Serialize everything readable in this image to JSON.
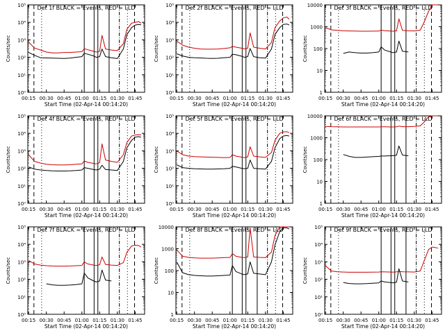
{
  "figure": {
    "title_template": "Det {n} BLACK = Events, RED = LLD",
    "xlabel": "Start Time (02-Apr-14 00:14:20)",
    "ylabel": "Counts/sec",
    "x_ticks": [
      "00:15",
      "00:30",
      "00:45",
      "01:00",
      "01:15",
      "01:30",
      "01:45"
    ],
    "colors": {
      "events": "#000000",
      "lld": "#cc0000",
      "axes": "#000000"
    }
  },
  "chart_data": [
    {
      "type": "line",
      "panel": "Det 1f",
      "title": "Det 1f BLACK = Events, RED = LLD",
      "xlabel": "Start Time (02-Apr-14 00:14:20)",
      "ylabel": "Counts/sec",
      "xlim": [
        "00:14:20",
        "01:53:00"
      ],
      "ylim": [
        1,
        100000
      ],
      "yscale": "log",
      "y_ticks": [
        "10⁰",
        "10¹",
        "10²",
        "10³",
        "10⁴",
        "10⁵"
      ],
      "x": [
        "00:15",
        "00:20",
        "00:25",
        "00:30",
        "00:35",
        "00:40",
        "00:45",
        "00:50",
        "00:55",
        "01:00",
        "01:02",
        "01:05",
        "01:10",
        "01:12",
        "01:15",
        "01:17",
        "01:20",
        "01:25",
        "01:30",
        "01:35",
        "01:38",
        "01:42",
        "01:45",
        "01:48",
        "01:50"
      ],
      "series": [
        {
          "name": "BLACK = Events",
          "values": [
            190,
            130,
            95,
            92,
            90,
            88,
            86,
            90,
            100,
            110,
            170,
            150,
            120,
            100,
            110,
            300,
            110,
            95,
            85,
            300,
            2000,
            5000,
            7000,
            7500,
            7200
          ]
        },
        {
          "name": "RED = LLD",
          "values": [
            750,
            340,
            260,
            200,
            180,
            180,
            190,
            190,
            200,
            210,
            310,
            270,
            220,
            200,
            220,
            1800,
            300,
            260,
            240,
            600,
            4000,
            9000,
            10000,
            11000,
            9000
          ]
        }
      ]
    },
    {
      "type": "line",
      "panel": "Det 2f",
      "title": "Det 2f BLACK = Events, RED = LLD",
      "xlabel": "Start Time (02-Apr-14 00:14:20)",
      "ylabel": "Counts/sec",
      "xlim": [
        "00:14:20",
        "01:53:00"
      ],
      "ylim": [
        1,
        100000
      ],
      "yscale": "log",
      "y_ticks": [
        "10⁰",
        "10¹",
        "10²",
        "10³",
        "10⁴",
        "10⁵"
      ],
      "x": [
        "00:15",
        "00:20",
        "00:25",
        "00:30",
        "00:35",
        "00:40",
        "00:45",
        "00:50",
        "00:55",
        "01:00",
        "01:02",
        "01:05",
        "01:10",
        "01:12",
        "01:15",
        "01:17",
        "01:20",
        "01:25",
        "01:30",
        "01:35",
        "01:38",
        "01:42",
        "01:45",
        "01:48",
        "01:50"
      ],
      "series": [
        {
          "name": "BLACK = Events",
          "values": [
            160,
            120,
            100,
            95,
            92,
            88,
            86,
            88,
            95,
            100,
            150,
            140,
            115,
            100,
            110,
            320,
            110,
            95,
            90,
            300,
            2000,
            5000,
            7500,
            8000,
            7000
          ]
        },
        {
          "name": "RED = LLD",
          "values": [
            850,
            500,
            380,
            330,
            300,
            290,
            290,
            300,
            320,
            350,
            420,
            380,
            330,
            300,
            330,
            2500,
            380,
            330,
            300,
            700,
            5000,
            12000,
            18000,
            20000,
            15000
          ]
        }
      ]
    },
    {
      "type": "line",
      "panel": "Det 3f",
      "title": "Det 3f BLACK = Events, RED = LLD",
      "xlabel": "Start Time (02-Apr-14 00:14:20)",
      "ylabel": "Counts/sec",
      "xlim": [
        "00:14:20",
        "01:53:00"
      ],
      "ylim": [
        1,
        10000
      ],
      "yscale": "log",
      "y_ticks": [
        "1",
        "10",
        "100",
        "1000",
        "10000"
      ],
      "x": [
        "00:15",
        "00:20",
        "00:25",
        "00:30",
        "00:35",
        "00:40",
        "00:45",
        "00:50",
        "00:55",
        "01:00",
        "01:02",
        "01:05",
        "01:10",
        "01:12",
        "01:15",
        "01:17",
        "01:20",
        "01:25",
        "01:30",
        "01:35",
        "01:38",
        "01:42",
        "01:45",
        "01:48",
        "01:50"
      ],
      "series": [
        {
          "name": "BLACK = Events",
          "values": [
            null,
            null,
            null,
            60,
            70,
            65,
            62,
            62,
            65,
            70,
            120,
            85,
            70,
            65,
            70,
            220,
            75,
            70,
            null,
            null,
            null,
            null,
            null,
            null,
            null
          ]
        },
        {
          "name": "RED = LLD",
          "values": [
            900,
            720,
            680,
            650,
            640,
            630,
            620,
            620,
            625,
            630,
            700,
            660,
            630,
            620,
            650,
            2300,
            680,
            650,
            640,
            700,
            1500,
            5000,
            10000,
            10000,
            10000
          ]
        }
      ]
    },
    {
      "type": "line",
      "panel": "Det 4f",
      "title": "Det 4f BLACK = Events, RED = LLD",
      "xlabel": "Start Time (02-Apr-14 00:14:20)",
      "ylabel": "Counts/sec",
      "xlim": [
        "00:14:20",
        "01:53:00"
      ],
      "ylim": [
        1,
        100000
      ],
      "yscale": "log",
      "y_ticks": [
        "10⁰",
        "10¹",
        "10²",
        "10³",
        "10⁴",
        "10⁵"
      ],
      "x": [
        "00:15",
        "00:20",
        "00:25",
        "00:30",
        "00:35",
        "00:40",
        "00:45",
        "00:50",
        "00:55",
        "01:00",
        "01:02",
        "01:05",
        "01:10",
        "01:12",
        "01:15",
        "01:17",
        "01:20",
        "01:25",
        "01:30",
        "01:35",
        "01:38",
        "01:42",
        "01:45",
        "01:48",
        "01:50"
      ],
      "series": [
        {
          "name": "BLACK = Events",
          "values": [
            120,
            90,
            80,
            75,
            72,
            70,
            70,
            72,
            75,
            80,
            110,
            100,
            85,
            80,
            90,
            150,
            85,
            80,
            75,
            250,
            1500,
            4000,
            6000,
            6500,
            6000
          ]
        },
        {
          "name": "RED = LLD",
          "values": [
            600,
            250,
            200,
            170,
            160,
            155,
            155,
            160,
            170,
            180,
            260,
            220,
            190,
            180,
            210,
            2500,
            300,
            250,
            220,
            600,
            3000,
            7000,
            8000,
            8500,
            8000
          ]
        }
      ]
    },
    {
      "type": "line",
      "panel": "Det 5f",
      "title": "Det 5f BLACK = Events, RED = LLD",
      "xlabel": "Start Time (02-Apr-14 00:14:20)",
      "ylabel": "Counts/sec",
      "xlim": [
        "00:14:20",
        "01:53:00"
      ],
      "ylim": [
        1,
        100000
      ],
      "yscale": "log",
      "y_ticks": [
        "10⁰",
        "10¹",
        "10²",
        "10³",
        "10⁴",
        "10⁵"
      ],
      "x": [
        "00:15",
        "00:20",
        "00:25",
        "00:30",
        "00:35",
        "00:40",
        "00:45",
        "00:50",
        "00:55",
        "01:00",
        "01:02",
        "01:05",
        "01:10",
        "01:12",
        "01:15",
        "01:17",
        "01:20",
        "01:25",
        "01:30",
        "01:35",
        "01:38",
        "01:42",
        "01:45",
        "01:48",
        "01:50"
      ],
      "series": [
        {
          "name": "BLACK = Events",
          "values": [
            160,
            110,
            100,
            95,
            92,
            90,
            90,
            92,
            95,
            100,
            130,
            120,
            100,
            95,
            100,
            300,
            100,
            95,
            90,
            250,
            1500,
            5000,
            7000,
            7500,
            7000
          ]
        },
        {
          "name": "RED = LLD",
          "values": [
            1000,
            600,
            500,
            470,
            450,
            440,
            430,
            420,
            410,
            420,
            600,
            500,
            430,
            410,
            450,
            1700,
            500,
            450,
            420,
            800,
            4000,
            10000,
            12000,
            12500,
            11000
          ]
        }
      ]
    },
    {
      "type": "line",
      "panel": "Det 6f",
      "title": "Det 6f BLACK = Events, RED = LLD",
      "xlabel": "Start Time (02-Apr-14 00:14:20)",
      "ylabel": "Counts/sec",
      "xlim": [
        "00:14:20",
        "01:53:00"
      ],
      "ylim": [
        1,
        10000
      ],
      "yscale": "log",
      "y_ticks": [
        "1",
        "10",
        "100",
        "1000",
        "10000"
      ],
      "x": [
        "00:15",
        "00:20",
        "00:25",
        "00:30",
        "00:35",
        "00:40",
        "00:45",
        "00:50",
        "00:55",
        "01:00",
        "01:02",
        "01:05",
        "01:10",
        "01:12",
        "01:15",
        "01:17",
        "01:20",
        "01:25",
        "01:30",
        "01:35",
        "01:38",
        "01:42",
        "01:45",
        "01:48",
        "01:50"
      ],
      "series": [
        {
          "name": "BLACK = Events",
          "values": [
            null,
            null,
            null,
            170,
            140,
            125,
            125,
            130,
            135,
            140,
            145,
            145,
            150,
            150,
            160,
            420,
            160,
            150,
            null,
            null,
            null,
            null,
            null,
            null,
            null
          ]
        },
        {
          "name": "RED = LLD",
          "values": [
            3300,
            3200,
            3150,
            3100,
            3100,
            3100,
            3100,
            3100,
            3100,
            3100,
            3150,
            3150,
            3100,
            3100,
            3150,
            3400,
            3200,
            3200,
            3300,
            3500,
            5000,
            9000,
            10000,
            10000,
            10000
          ]
        }
      ]
    },
    {
      "type": "line",
      "panel": "Det 7f",
      "title": "Det 7f BLACK = Events, RED = LLD",
      "xlabel": "Start Time (02-Apr-14 00:14:20)",
      "ylabel": "Counts/sec",
      "xlim": [
        "00:14:20",
        "01:53:00"
      ],
      "ylim": [
        1,
        100000
      ],
      "yscale": "log",
      "y_ticks": [
        "10⁰",
        "10¹",
        "10²",
        "10³",
        "10⁴",
        "10⁵"
      ],
      "x": [
        "00:15",
        "00:20",
        "00:25",
        "00:30",
        "00:35",
        "00:40",
        "00:45",
        "00:50",
        "00:55",
        "01:00",
        "01:02",
        "01:05",
        "01:10",
        "01:12",
        "01:15",
        "01:17",
        "01:20",
        "01:25",
        "01:30",
        "01:35",
        "01:38",
        "01:42",
        "01:45",
        "01:48",
        "01:50"
      ],
      "series": [
        {
          "name": "BLACK = Events",
          "values": [
            null,
            null,
            null,
            55,
            48,
            45,
            45,
            47,
            50,
            55,
            230,
            120,
            80,
            70,
            80,
            340,
            90,
            80,
            null,
            null,
            null,
            null,
            null,
            null,
            null
          ]
        },
        {
          "name": "RED = LLD",
          "values": [
            1200,
            750,
            650,
            600,
            580,
            570,
            570,
            580,
            600,
            620,
            1000,
            750,
            650,
            620,
            680,
            1900,
            700,
            650,
            620,
            900,
            3500,
            8000,
            9000,
            8500,
            7000
          ]
        }
      ]
    },
    {
      "type": "line",
      "panel": "Det 8f",
      "title": "Det 8f BLACK = Events, RED = LLD",
      "xlabel": "Start Time (02-Apr-14 00:14:20)",
      "ylabel": "Counts/sec",
      "xlim": [
        "00:14:20",
        "01:53:00"
      ],
      "ylim": [
        1,
        10000
      ],
      "yscale": "log",
      "y_ticks": [
        "1",
        "10",
        "100",
        "1000",
        "10000"
      ],
      "x": [
        "00:15",
        "00:20",
        "00:25",
        "00:30",
        "00:35",
        "00:40",
        "00:45",
        "00:50",
        "00:55",
        "01:00",
        "01:02",
        "01:05",
        "01:10",
        "01:12",
        "01:15",
        "01:17",
        "01:20",
        "01:25",
        "01:30",
        "01:35",
        "01:38",
        "01:42",
        "01:45",
        "01:48",
        "01:50"
      ],
      "series": [
        {
          "name": "BLACK = Events",
          "values": [
            250,
            80,
            65,
            60,
            58,
            56,
            56,
            58,
            60,
            62,
            170,
            90,
            70,
            65,
            70,
            250,
            75,
            70,
            65,
            250,
            1500,
            6000,
            9000,
            9000,
            8000
          ]
        },
        {
          "name": "RED = LLD",
          "values": [
            900,
            450,
            400,
            380,
            370,
            370,
            370,
            380,
            390,
            400,
            600,
            450,
            400,
            390,
            420,
            9000,
            420,
            400,
            390,
            700,
            4000,
            10000,
            10000,
            10000,
            10000
          ]
        }
      ]
    },
    {
      "type": "line",
      "panel": "Det 9f",
      "title": "Det 9f BLACK = Events, RED = LLD",
      "xlabel": "Start Time (02-Apr-14 00:14:20)",
      "ylabel": "Counts/sec",
      "xlim": [
        "00:14:20",
        "01:53:00"
      ],
      "ylim": [
        1,
        100000
      ],
      "yscale": "log",
      "y_ticks": [
        "10⁰",
        "10¹",
        "10²",
        "10³",
        "10⁴",
        "10⁵"
      ],
      "x": [
        "00:15",
        "00:20",
        "00:25",
        "00:30",
        "00:35",
        "00:40",
        "00:45",
        "00:50",
        "00:55",
        "01:00",
        "01:02",
        "01:05",
        "01:10",
        "01:12",
        "01:15",
        "01:17",
        "01:20",
        "01:25",
        "01:30",
        "01:35",
        "01:38",
        "01:42",
        "01:45",
        "01:48",
        "01:50"
      ],
      "series": [
        {
          "name": "BLACK = Events",
          "values": [
            null,
            null,
            null,
            65,
            58,
            55,
            55,
            57,
            60,
            62,
            80,
            70,
            65,
            62,
            68,
            400,
            80,
            70,
            null,
            null,
            null,
            null,
            null,
            null,
            null
          ]
        },
        {
          "name": "RED = LLD",
          "values": [
            600,
            300,
            270,
            260,
            255,
            255,
            255,
            255,
            258,
            260,
            270,
            265,
            260,
            258,
            265,
            280,
            270,
            265,
            260,
            300,
            1000,
            5000,
            7000,
            6500,
            6000
          ]
        }
      ]
    }
  ]
}
